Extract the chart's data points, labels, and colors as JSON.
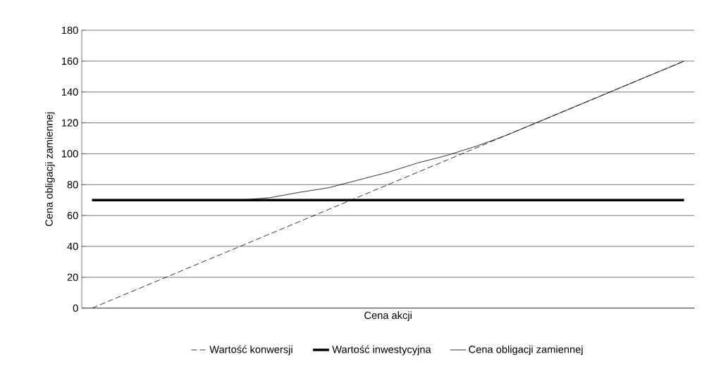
{
  "chart_data": {
    "type": "line",
    "xlabel": "Cena akcji",
    "ylabel": "Cena obligacji zamiennej",
    "categories": [
      null,
      null,
      null,
      null,
      null,
      null,
      null,
      null,
      null,
      null,
      null,
      null,
      null,
      null,
      null,
      null,
      null,
      null,
      null,
      null,
      null
    ],
    "series": [
      {
        "name": "Wartość konwersji",
        "color": "#000000",
        "line_style": "dashed",
        "values": [
          0,
          8,
          16,
          24,
          32,
          40,
          48,
          56,
          64,
          72,
          80,
          88,
          96,
          104,
          112,
          120,
          128,
          136,
          144,
          152,
          160
        ]
      },
      {
        "name": "Wartość inwestycyjna",
        "color": "#000000",
        "line_style": "solid",
        "values": [
          70,
          70,
          70,
          70,
          70,
          70,
          70,
          70,
          70,
          70,
          70,
          70,
          70,
          70,
          70,
          70,
          70,
          70,
          70,
          70,
          70
        ]
      },
      {
        "name": "Cena obligacji zamiennej",
        "color": "#000000",
        "line_style": "solid",
        "values": [
          70,
          70,
          70,
          70,
          70,
          70,
          71.5,
          75,
          78,
          83,
          88,
          94,
          99,
          105,
          112,
          120,
          128,
          136,
          144,
          152,
          160
        ]
      }
    ],
    "ylim": [
      0,
      180
    ],
    "yticks": [
      0,
      20,
      40,
      60,
      80,
      100,
      120,
      140,
      160,
      180
    ],
    "grid": "y",
    "legend": "bottom",
    "marker": "none"
  }
}
